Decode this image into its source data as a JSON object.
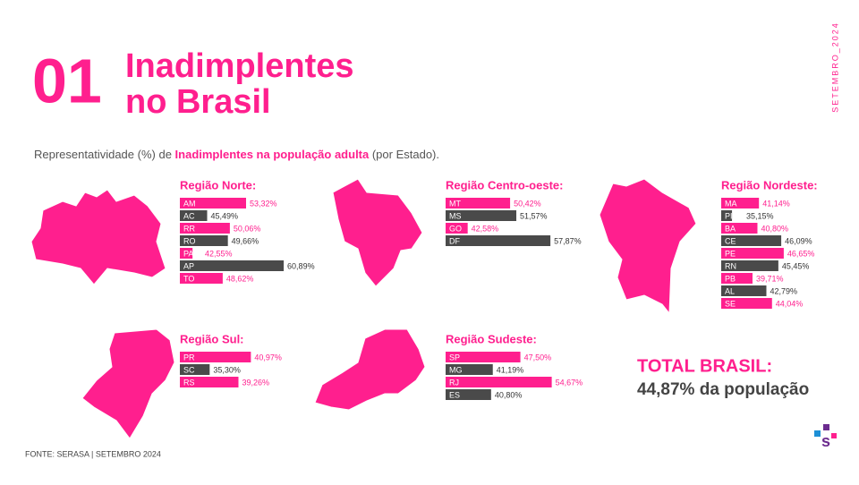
{
  "page_number": "01",
  "title_lines": [
    "Inadimplentes",
    "no Brasil"
  ],
  "subtitle": [
    "Representatividade (%) de ",
    "Inadimplentes na população adulta",
    " (por Estado)."
  ],
  "date_tag": "SETEMBRO_2024",
  "total": {
    "label": "TOTAL BRASIL:",
    "text": "44,87% da população"
  },
  "source": "FONTE: SERASA | SETEMBRO 2024",
  "chart_data": [
    {
      "type": "bar",
      "title": "Região Norte:",
      "categories": [
        "AM",
        "AC",
        "RR",
        "RO",
        "PA",
        "AP",
        "TO"
      ],
      "values": [
        53.32,
        45.49,
        50.06,
        49.66,
        42.55,
        60.89,
        48.62
      ],
      "value_labels": [
        "53,32%",
        "45,49%",
        "50,06%",
        "49,66%",
        "42,55%",
        "60,89%",
        "48,62%"
      ],
      "colors": [
        "#ff1f8e",
        "#4a4a4a",
        "#ff1f8e",
        "#4a4a4a",
        "#ff1f8e",
        "#4a4a4a",
        "#ff1f8e"
      ],
      "ylim": [
        40,
        63.4
      ]
    },
    {
      "type": "bar",
      "title": "Região Centro-oeste:",
      "categories": [
        "MT",
        "MS",
        "GO",
        "DF"
      ],
      "values": [
        50.42,
        51.57,
        42.58,
        57.87
      ],
      "value_labels": [
        "50,42%",
        "51,57%",
        "42,58%",
        "57,87%"
      ],
      "colors": [
        "#ff1f8e",
        "#4a4a4a",
        "#ff1f8e",
        "#4a4a4a"
      ],
      "ylim": [
        38.5,
        60
      ]
    },
    {
      "type": "bar",
      "title": "Região Nordeste:",
      "categories": [
        "MA",
        "PI",
        "BA",
        "CE",
        "PE",
        "RN",
        "PB",
        "AL",
        "SE"
      ],
      "values": [
        41.14,
        35.15,
        40.8,
        46.09,
        46.65,
        45.45,
        39.71,
        42.79,
        44.04
      ],
      "value_labels": [
        "41,14%",
        "35,15%",
        "40,80%",
        "46,09%",
        "46,65%",
        "45,45%",
        "39,71%",
        "42,79%",
        "44,04%"
      ],
      "colors": [
        "#ff1f8e",
        "#4a4a4a",
        "#ff1f8e",
        "#4a4a4a",
        "#ff1f8e",
        "#4a4a4a",
        "#ff1f8e",
        "#4a4a4a",
        "#ff1f8e"
      ],
      "ylim": [
        32.75,
        58.6
      ]
    },
    {
      "type": "bar",
      "title": "Região Sul:",
      "categories": [
        "PR",
        "SC",
        "RS"
      ],
      "values": [
        40.97,
        35.3,
        39.26
      ],
      "value_labels": [
        "40,97%",
        "35,30%",
        "39,26%"
      ],
      "colors": [
        "#ff1f8e",
        "#4a4a4a",
        "#ff1f8e"
      ],
      "ylim": [
        31.2,
        47.2
      ]
    },
    {
      "type": "bar",
      "title": "Região Sudeste:",
      "categories": [
        "SP",
        "MG",
        "RJ",
        "ES"
      ],
      "values": [
        47.5,
        41.19,
        54.67,
        40.8
      ],
      "value_labels": [
        "47,50%",
        "41,19%",
        "54,67%",
        "40,80%"
      ],
      "colors": [
        "#ff1f8e",
        "#4a4a4a",
        "#ff1f8e",
        "#4a4a4a"
      ],
      "ylim": [
        30.4,
        57
      ]
    }
  ]
}
